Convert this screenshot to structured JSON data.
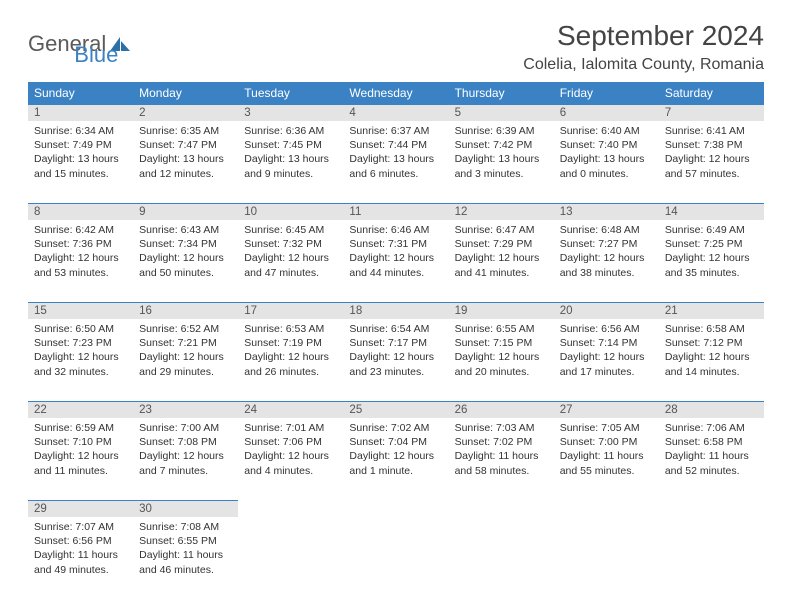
{
  "brand": {
    "general": "General",
    "blue": "Blue"
  },
  "colors": {
    "header_bg": "#3b82c4",
    "header_text": "#ffffff",
    "daynum_bg": "#e4e4e4",
    "daynum_border": "#3b82c4",
    "body_text": "#333333",
    "title_text": "#444444"
  },
  "title": "September 2024",
  "location": "Colelia, Ialomita County, Romania",
  "day_headers": [
    "Sunday",
    "Monday",
    "Tuesday",
    "Wednesday",
    "Thursday",
    "Friday",
    "Saturday"
  ],
  "weeks": [
    [
      {
        "n": "1",
        "sr": "Sunrise: 6:34 AM",
        "ss": "Sunset: 7:49 PM",
        "d1": "Daylight: 13 hours",
        "d2": "and 15 minutes."
      },
      {
        "n": "2",
        "sr": "Sunrise: 6:35 AM",
        "ss": "Sunset: 7:47 PM",
        "d1": "Daylight: 13 hours",
        "d2": "and 12 minutes."
      },
      {
        "n": "3",
        "sr": "Sunrise: 6:36 AM",
        "ss": "Sunset: 7:45 PM",
        "d1": "Daylight: 13 hours",
        "d2": "and 9 minutes."
      },
      {
        "n": "4",
        "sr": "Sunrise: 6:37 AM",
        "ss": "Sunset: 7:44 PM",
        "d1": "Daylight: 13 hours",
        "d2": "and 6 minutes."
      },
      {
        "n": "5",
        "sr": "Sunrise: 6:39 AM",
        "ss": "Sunset: 7:42 PM",
        "d1": "Daylight: 13 hours",
        "d2": "and 3 minutes."
      },
      {
        "n": "6",
        "sr": "Sunrise: 6:40 AM",
        "ss": "Sunset: 7:40 PM",
        "d1": "Daylight: 13 hours",
        "d2": "and 0 minutes."
      },
      {
        "n": "7",
        "sr": "Sunrise: 6:41 AM",
        "ss": "Sunset: 7:38 PM",
        "d1": "Daylight: 12 hours",
        "d2": "and 57 minutes."
      }
    ],
    [
      {
        "n": "8",
        "sr": "Sunrise: 6:42 AM",
        "ss": "Sunset: 7:36 PM",
        "d1": "Daylight: 12 hours",
        "d2": "and 53 minutes."
      },
      {
        "n": "9",
        "sr": "Sunrise: 6:43 AM",
        "ss": "Sunset: 7:34 PM",
        "d1": "Daylight: 12 hours",
        "d2": "and 50 minutes."
      },
      {
        "n": "10",
        "sr": "Sunrise: 6:45 AM",
        "ss": "Sunset: 7:32 PM",
        "d1": "Daylight: 12 hours",
        "d2": "and 47 minutes."
      },
      {
        "n": "11",
        "sr": "Sunrise: 6:46 AM",
        "ss": "Sunset: 7:31 PM",
        "d1": "Daylight: 12 hours",
        "d2": "and 44 minutes."
      },
      {
        "n": "12",
        "sr": "Sunrise: 6:47 AM",
        "ss": "Sunset: 7:29 PM",
        "d1": "Daylight: 12 hours",
        "d2": "and 41 minutes."
      },
      {
        "n": "13",
        "sr": "Sunrise: 6:48 AM",
        "ss": "Sunset: 7:27 PM",
        "d1": "Daylight: 12 hours",
        "d2": "and 38 minutes."
      },
      {
        "n": "14",
        "sr": "Sunrise: 6:49 AM",
        "ss": "Sunset: 7:25 PM",
        "d1": "Daylight: 12 hours",
        "d2": "and 35 minutes."
      }
    ],
    [
      {
        "n": "15",
        "sr": "Sunrise: 6:50 AM",
        "ss": "Sunset: 7:23 PM",
        "d1": "Daylight: 12 hours",
        "d2": "and 32 minutes."
      },
      {
        "n": "16",
        "sr": "Sunrise: 6:52 AM",
        "ss": "Sunset: 7:21 PM",
        "d1": "Daylight: 12 hours",
        "d2": "and 29 minutes."
      },
      {
        "n": "17",
        "sr": "Sunrise: 6:53 AM",
        "ss": "Sunset: 7:19 PM",
        "d1": "Daylight: 12 hours",
        "d2": "and 26 minutes."
      },
      {
        "n": "18",
        "sr": "Sunrise: 6:54 AM",
        "ss": "Sunset: 7:17 PM",
        "d1": "Daylight: 12 hours",
        "d2": "and 23 minutes."
      },
      {
        "n": "19",
        "sr": "Sunrise: 6:55 AM",
        "ss": "Sunset: 7:15 PM",
        "d1": "Daylight: 12 hours",
        "d2": "and 20 minutes."
      },
      {
        "n": "20",
        "sr": "Sunrise: 6:56 AM",
        "ss": "Sunset: 7:14 PM",
        "d1": "Daylight: 12 hours",
        "d2": "and 17 minutes."
      },
      {
        "n": "21",
        "sr": "Sunrise: 6:58 AM",
        "ss": "Sunset: 7:12 PM",
        "d1": "Daylight: 12 hours",
        "d2": "and 14 minutes."
      }
    ],
    [
      {
        "n": "22",
        "sr": "Sunrise: 6:59 AM",
        "ss": "Sunset: 7:10 PM",
        "d1": "Daylight: 12 hours",
        "d2": "and 11 minutes."
      },
      {
        "n": "23",
        "sr": "Sunrise: 7:00 AM",
        "ss": "Sunset: 7:08 PM",
        "d1": "Daylight: 12 hours",
        "d2": "and 7 minutes."
      },
      {
        "n": "24",
        "sr": "Sunrise: 7:01 AM",
        "ss": "Sunset: 7:06 PM",
        "d1": "Daylight: 12 hours",
        "d2": "and 4 minutes."
      },
      {
        "n": "25",
        "sr": "Sunrise: 7:02 AM",
        "ss": "Sunset: 7:04 PM",
        "d1": "Daylight: 12 hours",
        "d2": "and 1 minute."
      },
      {
        "n": "26",
        "sr": "Sunrise: 7:03 AM",
        "ss": "Sunset: 7:02 PM",
        "d1": "Daylight: 11 hours",
        "d2": "and 58 minutes."
      },
      {
        "n": "27",
        "sr": "Sunrise: 7:05 AM",
        "ss": "Sunset: 7:00 PM",
        "d1": "Daylight: 11 hours",
        "d2": "and 55 minutes."
      },
      {
        "n": "28",
        "sr": "Sunrise: 7:06 AM",
        "ss": "Sunset: 6:58 PM",
        "d1": "Daylight: 11 hours",
        "d2": "and 52 minutes."
      }
    ],
    [
      {
        "n": "29",
        "sr": "Sunrise: 7:07 AM",
        "ss": "Sunset: 6:56 PM",
        "d1": "Daylight: 11 hours",
        "d2": "and 49 minutes."
      },
      {
        "n": "30",
        "sr": "Sunrise: 7:08 AM",
        "ss": "Sunset: 6:55 PM",
        "d1": "Daylight: 11 hours",
        "d2": "and 46 minutes."
      },
      null,
      null,
      null,
      null,
      null
    ]
  ]
}
